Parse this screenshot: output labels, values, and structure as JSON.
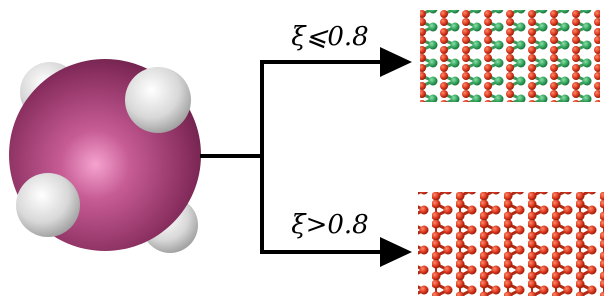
{
  "labels": {
    "upper": "ξ⩽0.8",
    "lower": "ξ>0.8"
  }
}
